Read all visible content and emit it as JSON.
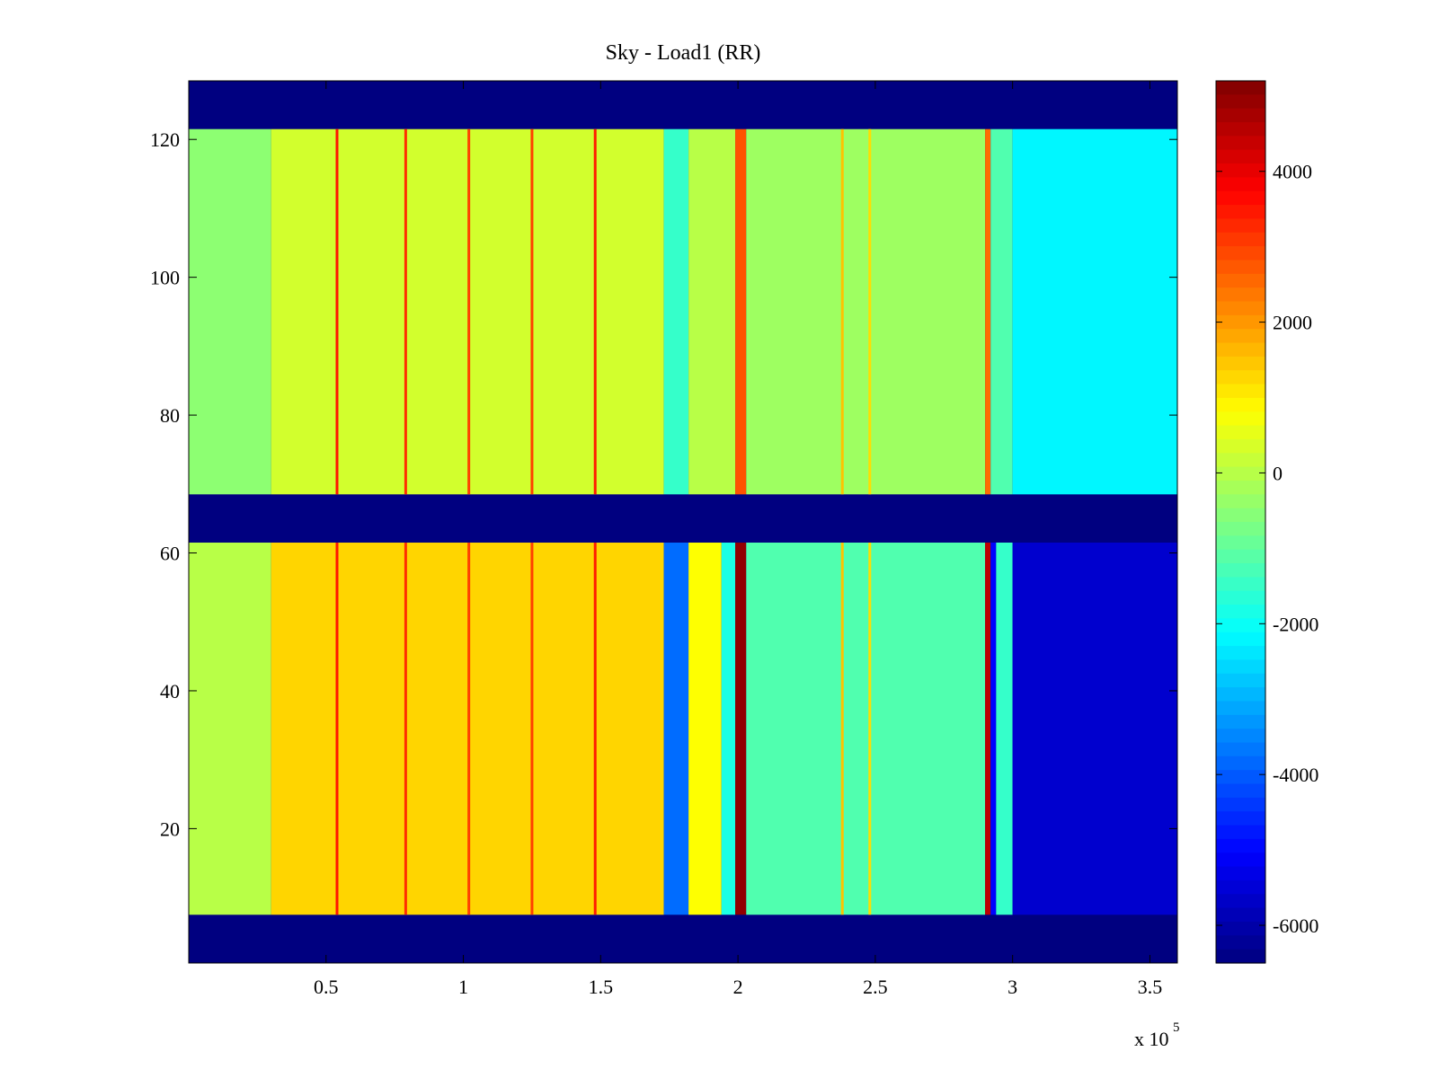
{
  "chart_data": {
    "type": "heatmap",
    "title": "Sky - Load1 (RR)",
    "xlabel": "",
    "ylabel": "",
    "x_multiplier_label": "x 10",
    "x_multiplier_exponent": "5",
    "xlim": [
      0,
      3.6
    ],
    "ylim": [
      1,
      128
    ],
    "x_ticks": [
      {
        "value": 0.5,
        "label": "0.5"
      },
      {
        "value": 1,
        "label": "1"
      },
      {
        "value": 1.5,
        "label": "1.5"
      },
      {
        "value": 2,
        "label": "2"
      },
      {
        "value": 2.5,
        "label": "2.5"
      },
      {
        "value": 3,
        "label": "3"
      },
      {
        "value": 3.5,
        "label": "3.5"
      }
    ],
    "y_ticks": [
      {
        "value": 20,
        "label": "20"
      },
      {
        "value": 40,
        "label": "40"
      },
      {
        "value": 60,
        "label": "60"
      },
      {
        "value": 80,
        "label": "80"
      },
      {
        "value": 100,
        "label": "100"
      },
      {
        "value": 120,
        "label": "120"
      }
    ],
    "colormap": "jet",
    "colorbar": {
      "clim": [
        -6500,
        5200
      ],
      "ticks": [
        {
          "value": 4000,
          "label": "4000"
        },
        {
          "value": 2000,
          "label": "2000"
        },
        {
          "value": 0,
          "label": "0"
        },
        {
          "value": -2000,
          "label": "-2000"
        },
        {
          "value": -4000,
          "label": "-4000"
        },
        {
          "value": -6000,
          "label": "-6000"
        }
      ]
    },
    "empty_fill_value": -6500,
    "row_bands": [
      {
        "rows": [
          1,
          7
        ],
        "state": "empty"
      },
      {
        "rows": [
          8,
          61
        ],
        "state": "data"
      },
      {
        "rows": [
          62,
          68
        ],
        "state": "empty"
      },
      {
        "rows": [
          69,
          121
        ],
        "state": "data"
      },
      {
        "rows": [
          122,
          128
        ],
        "state": "empty"
      }
    ],
    "lower_band_segments": [
      {
        "x": [
          0.0,
          0.3
        ],
        "value": 0
      },
      {
        "x": [
          0.3,
          1.73
        ],
        "value": 1300
      },
      {
        "x": [
          1.73,
          1.82
        ],
        "value": -3800
      },
      {
        "x": [
          1.82,
          1.94
        ],
        "value": 800
      },
      {
        "x": [
          1.94,
          1.99
        ],
        "value": -1800
      },
      {
        "x": [
          1.99,
          2.03
        ],
        "value": 5000
      },
      {
        "x": [
          2.03,
          2.9
        ],
        "value": -1200
      },
      {
        "x": [
          2.9,
          2.92
        ],
        "value": 4500
      },
      {
        "x": [
          2.92,
          2.94
        ],
        "value": -5000
      },
      {
        "x": [
          2.94,
          3.0
        ],
        "value": -1500
      },
      {
        "x": [
          3.0,
          3.6
        ],
        "value": -5600
      }
    ],
    "upper_band_segments": [
      {
        "x": [
          0.0,
          0.3
        ],
        "value": -500
      },
      {
        "x": [
          0.3,
          1.73
        ],
        "value": 300
      },
      {
        "x": [
          1.73,
          1.82
        ],
        "value": -1500
      },
      {
        "x": [
          1.82,
          1.99
        ],
        "value": 0
      },
      {
        "x": [
          1.99,
          2.03
        ],
        "value": 2800
      },
      {
        "x": [
          2.03,
          2.9
        ],
        "value": -300
      },
      {
        "x": [
          2.9,
          2.92
        ],
        "value": 2500
      },
      {
        "x": [
          2.92,
          3.0
        ],
        "value": -1200
      },
      {
        "x": [
          3.0,
          3.6
        ],
        "value": -2200
      }
    ],
    "vertical_stripes": [
      {
        "x": 0.54,
        "value": 3500
      },
      {
        "x": 0.79,
        "value": 3200
      },
      {
        "x": 1.02,
        "value": 3000
      },
      {
        "x": 1.25,
        "value": 3000
      },
      {
        "x": 1.48,
        "value": 3400
      },
      {
        "x": 2.38,
        "value": 1500
      },
      {
        "x": 2.48,
        "value": 1200
      }
    ]
  }
}
